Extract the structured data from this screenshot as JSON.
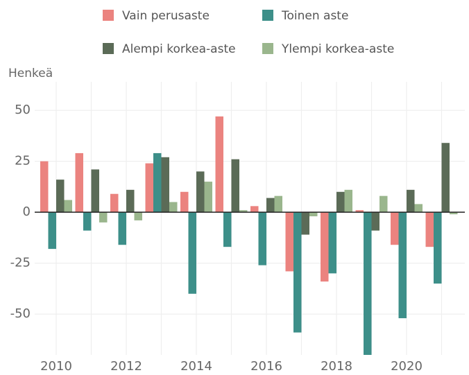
{
  "chart_data": {
    "type": "bar",
    "y_label": "Henkeä",
    "categories": [
      "2010",
      null,
      "2012",
      null,
      "2014",
      null,
      "2016",
      null,
      "2018",
      null,
      "2020",
      null
    ],
    "series": [
      {
        "name": "Vain perusaste",
        "color": "#eb837f",
        "values": [
          25,
          29,
          9,
          24,
          10,
          47,
          3,
          -29,
          -34,
          1,
          -16,
          -17
        ]
      },
      {
        "name": "Toinen aste",
        "color": "#3d8f89",
        "values": [
          -18,
          -9,
          -16,
          29,
          -40,
          -17,
          -26,
          -59,
          -30,
          -72,
          -52,
          -35
        ]
      },
      {
        "name": "Alempi korkea-aste",
        "color": "#5b6b57",
        "values": [
          16,
          21,
          11,
          27,
          20,
          26,
          7,
          -11,
          10,
          -9,
          11,
          34
        ]
      },
      {
        "name": "Ylempi korkea-aste",
        "color": "#9ab68d",
        "values": [
          6,
          -5,
          -4,
          5,
          15,
          1,
          8,
          -2,
          11,
          8,
          4,
          -1
        ]
      }
    ],
    "ylim": [
      -70,
      64
    ],
    "yticks": [
      -50,
      -25,
      0,
      25,
      50
    ],
    "grid": true
  }
}
